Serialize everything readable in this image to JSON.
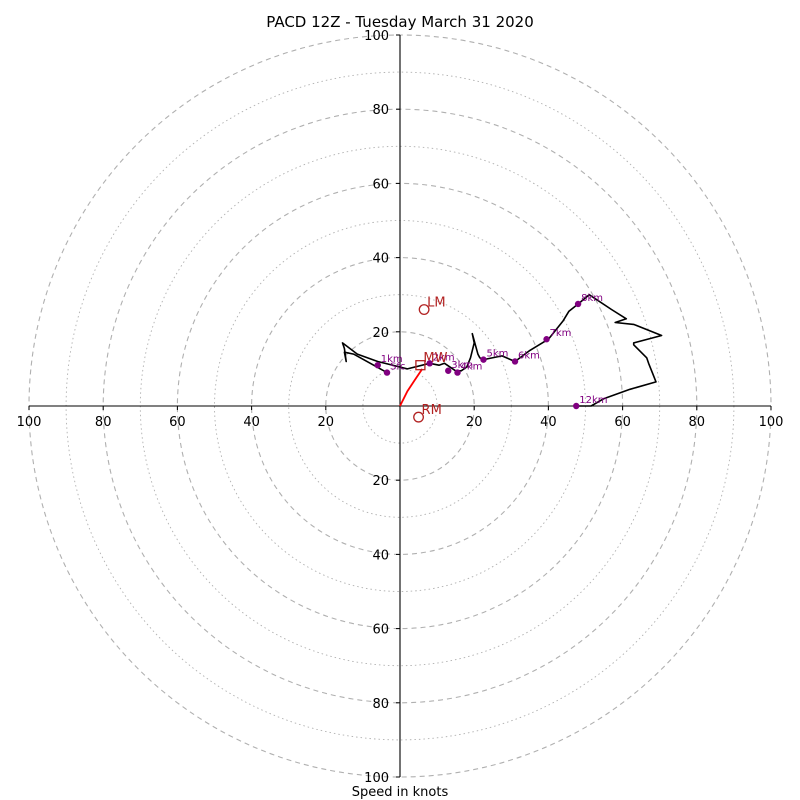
{
  "chart_data": {
    "type": "hodograph",
    "title": "PACD 12Z - Tuesday March 31 2020",
    "xlabel": "Speed in knots",
    "axis_range": [
      -100,
      100
    ],
    "ring_spacing_major": 20,
    "ring_spacing_minor": 10,
    "tick_labels": {
      "x": [
        "100",
        "80",
        "60",
        "40",
        "20",
        "20",
        "40",
        "60",
        "80",
        "100"
      ],
      "y_top": [
        "20",
        "40",
        "60",
        "80",
        "100"
      ],
      "y_bottom": [
        "20",
        "40",
        "60",
        "80",
        "100"
      ]
    },
    "hodograph_line": [
      [
        -3.5,
        9.0
      ],
      [
        -8.0,
        11.5
      ],
      [
        -12.5,
        14.0
      ],
      [
        -15.0,
        14.5
      ],
      [
        -14.5,
        12.0
      ],
      [
        -15.0,
        15.5
      ],
      [
        -15.5,
        17.0
      ],
      [
        -11.5,
        14.0
      ],
      [
        -6.0,
        12.0
      ],
      [
        2.0,
        10.0
      ],
      [
        8.0,
        11.5
      ],
      [
        10.5,
        11.0
      ],
      [
        12.0,
        11.5
      ],
      [
        15.0,
        9.5
      ],
      [
        16.5,
        9.5
      ],
      [
        18.0,
        10.5
      ],
      [
        19.0,
        13.0
      ],
      [
        20.0,
        17.0
      ],
      [
        19.5,
        19.5
      ],
      [
        21.0,
        14.0
      ],
      [
        21.5,
        13.0
      ],
      [
        22.5,
        12.5
      ],
      [
        27.5,
        13.5
      ],
      [
        31.0,
        12.0
      ],
      [
        35.0,
        15.0
      ],
      [
        40.0,
        18.0
      ],
      [
        44.0,
        23.0
      ],
      [
        45.5,
        25.5
      ],
      [
        48.0,
        27.5
      ],
      [
        51.0,
        30.0
      ],
      [
        57.0,
        26.0
      ],
      [
        61.0,
        23.5
      ],
      [
        58.0,
        22.5
      ],
      [
        63.0,
        22.0
      ],
      [
        70.5,
        19.0
      ],
      [
        63.0,
        17.0
      ],
      [
        63.0,
        16.5
      ],
      [
        66.5,
        13.0
      ],
      [
        67.0,
        11.5
      ],
      [
        68.0,
        9.0
      ],
      [
        69.0,
        6.5
      ],
      [
        62.0,
        4.5
      ],
      [
        55.0,
        2.0
      ],
      [
        51.5,
        0.0
      ],
      [
        49.0,
        0.0
      ],
      [
        47.5,
        0.0
      ]
    ],
    "lowlevel_line": [
      [
        0.0,
        0.0
      ],
      [
        2.0,
        4.0
      ],
      [
        4.0,
        7.0
      ],
      [
        6.0,
        10.0
      ]
    ],
    "height_markers": [
      {
        "label": "1km",
        "u": -6.0,
        "v": 11.0
      },
      {
        "label": "Sfc",
        "u": -3.5,
        "v": 9.0
      },
      {
        "label": "2km",
        "u": 8.0,
        "v": 11.5
      },
      {
        "label": "3km",
        "u": 13.0,
        "v": 9.5
      },
      {
        "label": "4km",
        "u": 15.5,
        "v": 9.0
      },
      {
        "label": "5km",
        "u": 22.5,
        "v": 12.5
      },
      {
        "label": "6km",
        "u": 31.0,
        "v": 12.0
      },
      {
        "label": "7km",
        "u": 39.5,
        "v": 18.0
      },
      {
        "label": "8km",
        "u": 48.0,
        "v": 27.5
      },
      {
        "label": "12km",
        "u": 47.5,
        "v": 0.0
      }
    ],
    "motion_markers": [
      {
        "label": "LM",
        "u": 6.5,
        "v": 26.0,
        "shape": "circle"
      },
      {
        "label": "MW",
        "u": 5.5,
        "v": 11.0,
        "shape": "square"
      },
      {
        "label": "RM",
        "u": 5.0,
        "v": -3.0,
        "shape": "circle"
      }
    ],
    "colors": {
      "hodograph": "#000000",
      "lowlevel": "#ff0000",
      "height_marker": "#800080",
      "motion_marker": "#b22222",
      "ring": "#b0b0b0"
    }
  }
}
